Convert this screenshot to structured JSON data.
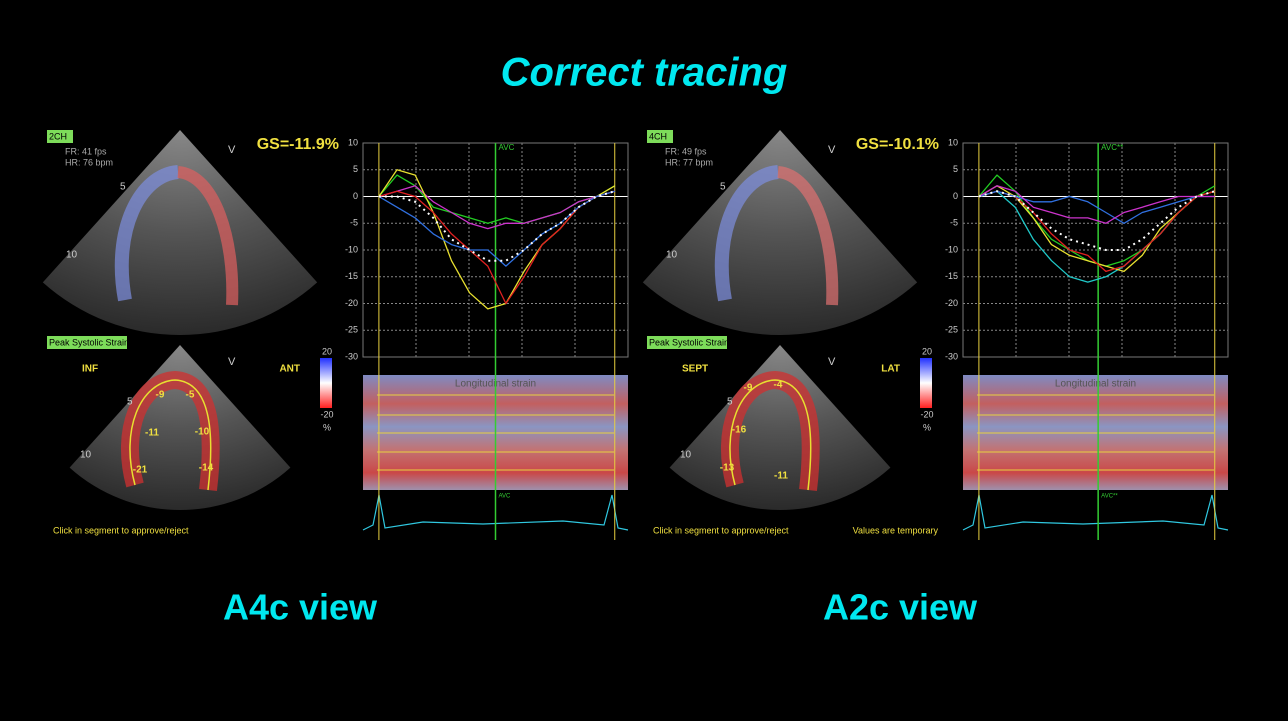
{
  "title": "Correct tracing",
  "panels": [
    {
      "view_label": "A4c view",
      "top": {
        "tag": "2CH",
        "fr": "FR: 41 fps",
        "hr": "HR: 76 bpm",
        "gs": "GS=-11.9%",
        "marker": "V",
        "depths": [
          5,
          10
        ]
      },
      "bottom": {
        "tag": "Peak Systolic Strain",
        "left": "INF",
        "right": "ANT",
        "marker": "V",
        "depths": [
          5,
          10
        ],
        "scale": [
          20,
          -20
        ],
        "unit": "%",
        "segments": [
          -9,
          -5,
          -11,
          -10,
          -21,
          -14
        ],
        "footer": "Click in segment to approve/reject"
      },
      "heatmap": {
        "label": "Longitudinal strain",
        "annotation": "AVC"
      }
    },
    {
      "view_label": "A2c view",
      "top": {
        "tag": "4CH",
        "fr": "FR: 49 fps",
        "hr": "HR: 77 bpm",
        "gs": "GS=-10.1%",
        "marker": "V",
        "depths": [
          5,
          10
        ]
      },
      "bottom": {
        "tag": "Peak Systolic Strain",
        "left": "SEPT",
        "right": "LAT",
        "marker": "V",
        "depths": [
          5,
          10
        ],
        "scale": [
          20,
          -20
        ],
        "unit": "%",
        "segments": [
          -9,
          -4,
          -16,
          -13,
          -11
        ],
        "footer": "Click in segment to approve/reject",
        "note": "Values are temporary"
      },
      "heatmap": {
        "label": "Longitudinal strain",
        "annotation": "AVC**"
      }
    }
  ],
  "chart_data": [
    {
      "type": "line",
      "annotation": "AVC",
      "ylim": [
        -30,
        10
      ],
      "yticks": [
        10,
        5,
        0,
        -5,
        -10,
        -15,
        -20,
        -25,
        -30
      ],
      "grid": true,
      "series": [
        {
          "color": "#22cc22",
          "values": [
            0,
            4,
            2,
            -2,
            -3,
            -4,
            -5,
            -4,
            -5,
            -4,
            -3,
            -1,
            0,
            2
          ]
        },
        {
          "color": "#cc33cc",
          "values": [
            0,
            1,
            2,
            -1,
            -3,
            -5,
            -6,
            -5,
            -5,
            -4,
            -3,
            -1,
            0,
            1
          ]
        },
        {
          "color": "#e8e030",
          "values": [
            0,
            5,
            4,
            -3,
            -12,
            -18,
            -21,
            -20,
            -14,
            -9,
            -6,
            -2,
            0,
            2
          ]
        },
        {
          "color": "#e02020",
          "values": [
            0,
            1,
            0,
            -3,
            -7,
            -10,
            -13,
            -20,
            -15,
            -9,
            -6,
            -2,
            0,
            1
          ]
        },
        {
          "color": "#3070e0",
          "values": [
            0,
            -2,
            -4,
            -7,
            -9,
            -10,
            -10,
            -13,
            -10,
            -7,
            -5,
            -2,
            0,
            1
          ]
        },
        {
          "color": "#ffffff",
          "style": "dotted",
          "values": [
            0,
            0,
            -1,
            -4,
            -8,
            -10,
            -12,
            -12,
            -10,
            -7,
            -5,
            -2,
            0,
            1
          ]
        }
      ]
    },
    {
      "type": "line",
      "annotation": "AVC**",
      "ylim": [
        -30,
        10
      ],
      "yticks": [
        10,
        5,
        0,
        -5,
        -10,
        -15,
        -20,
        -25,
        -30
      ],
      "grid": true,
      "series": [
        {
          "color": "#22cc22",
          "values": [
            0,
            4,
            1,
            -4,
            -8,
            -10,
            -12,
            -13,
            -12,
            -10,
            -7,
            -3,
            0,
            2
          ]
        },
        {
          "color": "#20c8c8",
          "values": [
            0,
            1,
            -2,
            -8,
            -12,
            -15,
            -16,
            -15,
            -13,
            -10,
            -7,
            -3,
            0,
            1
          ]
        },
        {
          "color": "#e8e030",
          "values": [
            0,
            2,
            0,
            -4,
            -9,
            -11,
            -12,
            -13,
            -14,
            -11,
            -6,
            -3,
            0,
            1
          ]
        },
        {
          "color": "#e02020",
          "values": [
            0,
            1,
            0,
            -3,
            -7,
            -10,
            -11,
            -14,
            -13,
            -10,
            -7,
            -3,
            0,
            1
          ]
        },
        {
          "color": "#3070e0",
          "values": [
            0,
            1,
            0,
            -1,
            -1,
            0,
            -1,
            -3,
            -5,
            -3,
            -2,
            -1,
            0,
            0
          ]
        },
        {
          "color": "#cc33cc",
          "values": [
            0,
            2,
            1,
            -2,
            -3,
            -4,
            -4,
            -5,
            -3,
            -2,
            -1,
            0,
            0,
            0
          ]
        },
        {
          "color": "#ffffff",
          "style": "dotted",
          "values": [
            0,
            1,
            0,
            -3,
            -6,
            -8,
            -9,
            -10,
            -10,
            -8,
            -5,
            -2,
            0,
            1
          ]
        }
      ]
    }
  ]
}
